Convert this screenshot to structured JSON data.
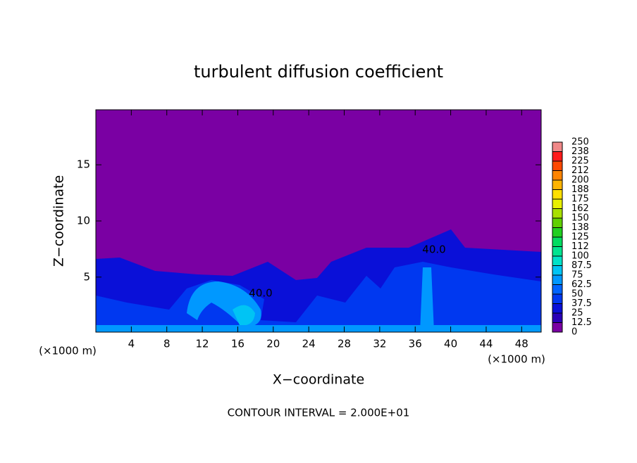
{
  "chart_data": {
    "type": "contour",
    "title": "turbulent diffusion coefficient",
    "x_label": "X−coordinate",
    "y_label": "Z−coordinate",
    "x_unit": "(×1000 m)",
    "y_unit": "(×1000 m)",
    "footer": "CONTOUR INTERVAL = 2.000E+01",
    "contour_labels": [
      "40.0",
      "40.0"
    ],
    "xlim": [
      0,
      50.2
    ],
    "xticks": [
      4,
      8,
      12,
      16,
      20,
      24,
      28,
      32,
      36,
      40,
      44,
      48
    ],
    "ylim": [
      0.1,
      19.9
    ],
    "yticks": [
      5,
      10,
      15
    ],
    "levels": [
      0,
      12.5,
      25,
      37.5,
      50,
      62.5,
      75,
      87.5,
      100,
      {
        "value": 112.5,
        "label": "112"
      },
      125,
      {
        "value": 137.5,
        "label": "138"
      },
      150,
      {
        "value": 162.5,
        "label": "162"
      },
      175,
      {
        "value": 187.5,
        "label": "188"
      },
      200,
      {
        "value": 212.5,
        "label": "212"
      },
      225,
      {
        "value": 237.5,
        "label": "238"
      },
      250
    ],
    "colors": [
      "#7a00a3",
      "#2a00b8",
      "#0a10d8",
      "#0038f0",
      "#0064ff",
      "#0098ff",
      "#00c4f4",
      "#00e2c8",
      "#00e490",
      "#00dc60",
      "#20d020",
      "#60d000",
      "#a8e000",
      "#e8f000",
      "#ffe000",
      "#ffb400",
      "#ff8400",
      "#ff4800",
      "#ff1a1a",
      "#f08888"
    ]
  }
}
